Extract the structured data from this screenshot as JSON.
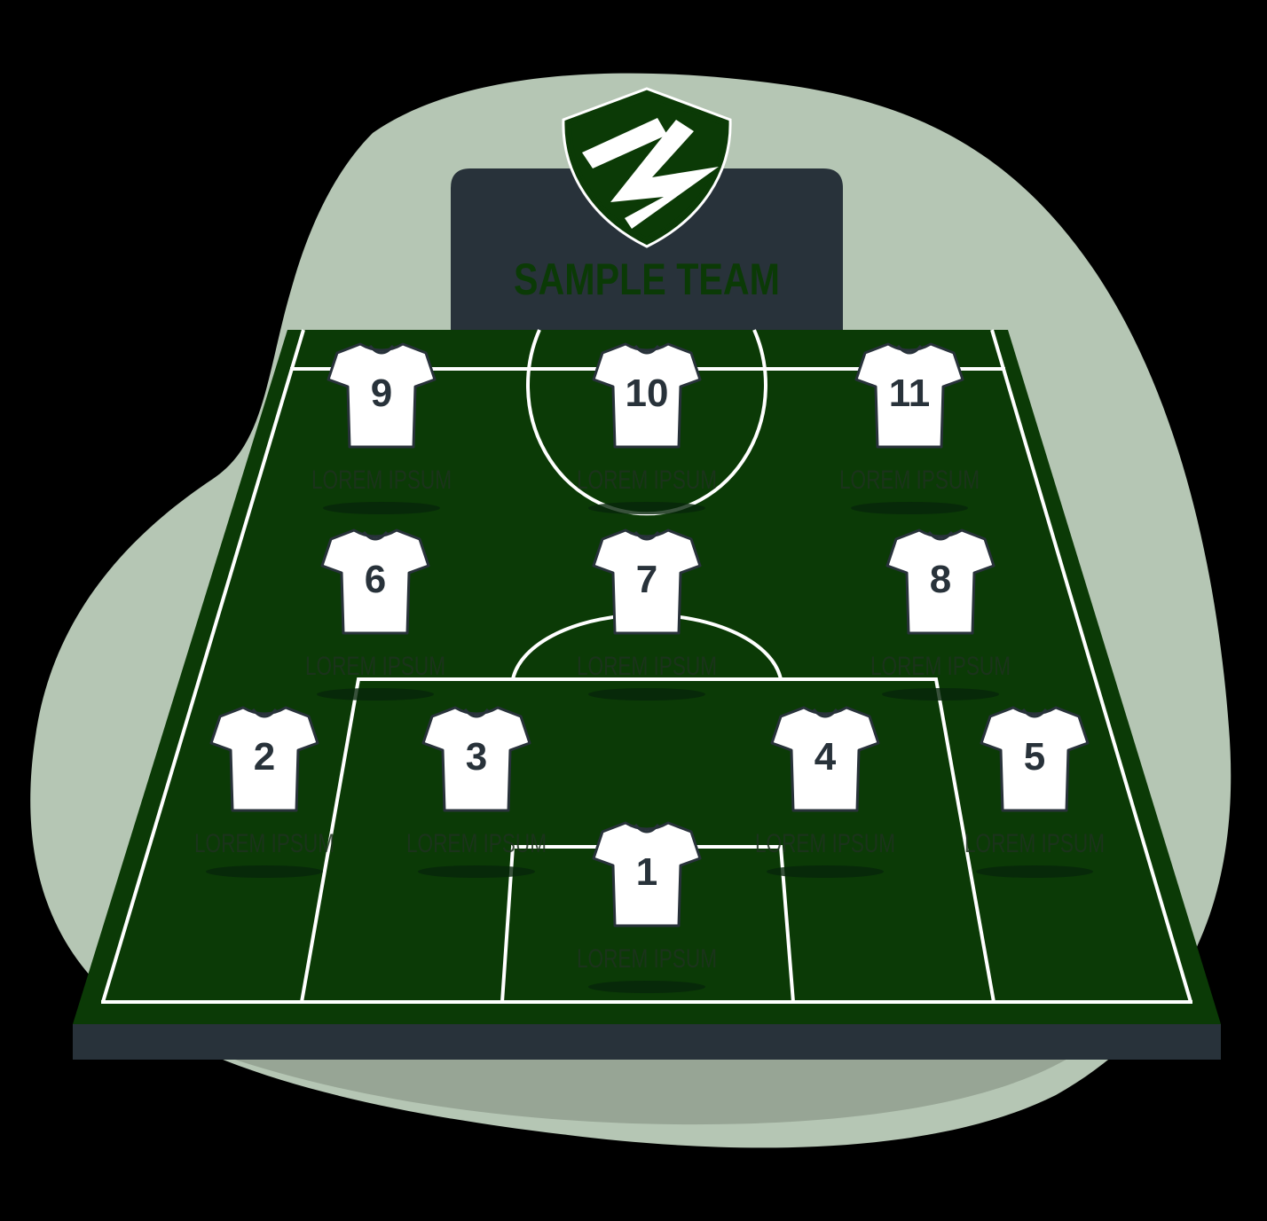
{
  "colors": {
    "background": "#000000",
    "blob": "#b5c6b4",
    "blob_shadow": "#97a595",
    "pitch": "#0b3a06",
    "pitch_lines": "#ffffff",
    "pitch_edge": "#28323a",
    "board": "#28323a",
    "team_text": "#0b3a06",
    "shirt": "#ffffff",
    "shirt_outline": "#28323a",
    "number_text": "#28323a",
    "name_text": "#1f3320"
  },
  "team": {
    "name": "SAMPLE TEAM",
    "crest_icon": "shield-crest-icon"
  },
  "players": [
    {
      "number": "9",
      "name": "LOREM IPSUM"
    },
    {
      "number": "10",
      "name": "LOREM IPSUM"
    },
    {
      "number": "11",
      "name": "LOREM IPSUM"
    },
    {
      "number": "6",
      "name": "LOREM IPSUM"
    },
    {
      "number": "7",
      "name": "LOREM IPSUM"
    },
    {
      "number": "8",
      "name": "LOREM IPSUM"
    },
    {
      "number": "2",
      "name": "LOREM IPSUM"
    },
    {
      "number": "3",
      "name": "LOREM IPSUM"
    },
    {
      "number": "4",
      "name": "LOREM IPSUM"
    },
    {
      "number": "5",
      "name": "LOREM IPSUM"
    },
    {
      "number": "1",
      "name": "LOREM IPSUM"
    }
  ]
}
